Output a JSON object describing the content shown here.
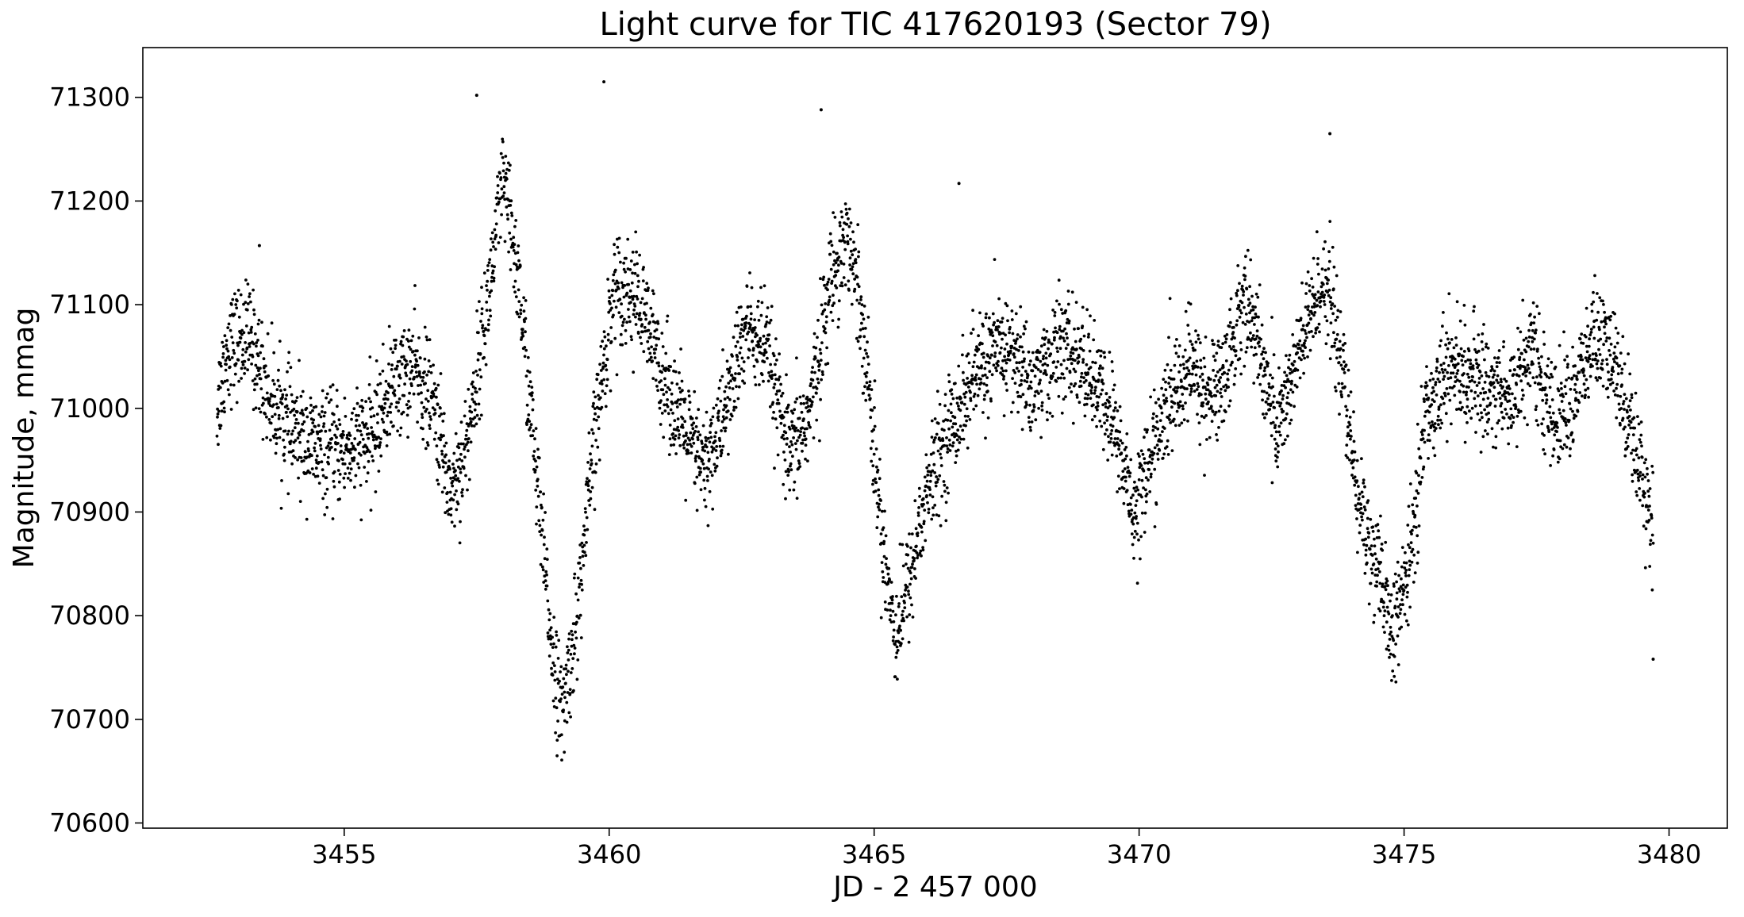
{
  "chart_data": {
    "type": "scatter",
    "title": "Light curve for TIC 417620193 (Sector 79)",
    "xlabel": "JD - 2 457 000",
    "ylabel": "Magnitude, mmag",
    "xlim": [
      3451.2,
      3481.1
    ],
    "ylim": [
      70595,
      71348
    ],
    "xticks": [
      3455,
      3460,
      3465,
      3470,
      3475,
      3480
    ],
    "yticks": [
      70600,
      70700,
      70800,
      70900,
      71000,
      71100,
      71200,
      71300
    ],
    "grid": false,
    "legend": "none",
    "marker_color": "#000000",
    "x_range_observed": [
      3452.6,
      3479.7
    ],
    "trend": {
      "x": [
        3452.6,
        3452.8,
        3453.2,
        3453.6,
        3454.0,
        3454.5,
        3455.0,
        3455.5,
        3455.9,
        3456.3,
        3456.7,
        3457.0,
        3457.3,
        3457.7,
        3458.0,
        3458.3,
        3458.6,
        3458.9,
        3459.1,
        3459.4,
        3459.7,
        3460.1,
        3460.5,
        3460.9,
        3461.4,
        3461.8,
        3462.2,
        3462.6,
        3463.0,
        3463.4,
        3463.8,
        3464.2,
        3464.5,
        3464.8,
        3465.1,
        3465.4,
        3465.6,
        3466.0,
        3466.5,
        3467.0,
        3467.5,
        3468.0,
        3468.5,
        3469.0,
        3469.5,
        3469.9,
        3470.2,
        3470.6,
        3471.0,
        3471.3,
        3471.6,
        3472.0,
        3472.3,
        3472.6,
        3473.0,
        3473.5,
        3473.8,
        3474.1,
        3474.4,
        3474.8,
        3475.1,
        3475.4,
        3475.8,
        3476.2,
        3476.6,
        3477.0,
        3477.4,
        3477.8,
        3478.2,
        3478.6,
        3479.0,
        3479.3,
        3479.7
      ],
      "y": [
        71000,
        71060,
        71070,
        71010,
        70980,
        70960,
        70960,
        70970,
        71020,
        71040,
        71000,
        70920,
        70960,
        71100,
        71220,
        71120,
        70950,
        70780,
        70700,
        70800,
        70960,
        71120,
        71110,
        71050,
        70980,
        70940,
        71000,
        71080,
        71050,
        70950,
        71000,
        71130,
        71170,
        71080,
        70900,
        70780,
        70820,
        70920,
        70990,
        71040,
        71060,
        71020,
        71060,
        71040,
        70990,
        70900,
        70950,
        71010,
        71040,
        71010,
        71030,
        71110,
        71050,
        70980,
        71050,
        71130,
        71050,
        70920,
        70860,
        70780,
        70850,
        70990,
        71040,
        71030,
        71020,
        71010,
        71060,
        70990,
        71010,
        71070,
        71040,
        70980,
        70890
      ]
    },
    "outliers": {
      "x": [
        3459.9,
        3464.0,
        3473.6,
        3457.5,
        3453.4,
        3466.6,
        3479.7
      ],
      "y": [
        71315,
        71288,
        71265,
        71302,
        71157,
        71217,
        70758
      ]
    }
  }
}
